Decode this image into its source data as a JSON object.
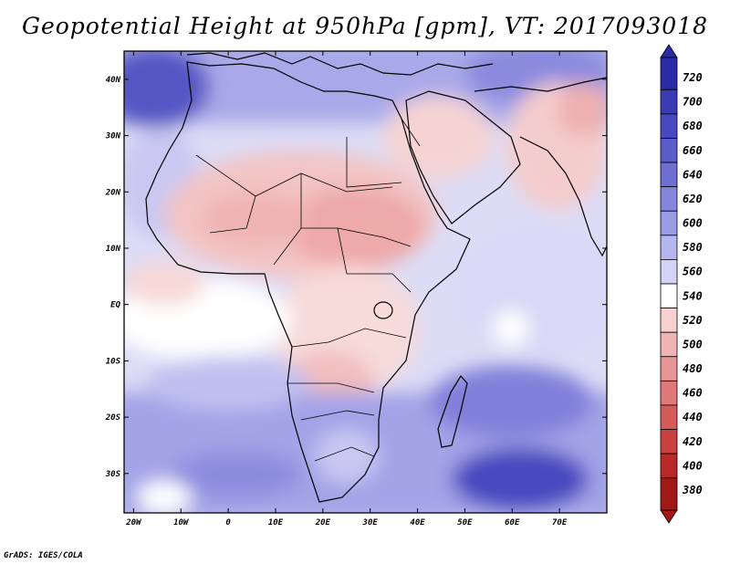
{
  "title": "Geopotential Height at 950hPa [gpm], VT: 2017093018",
  "credit": "GrADS: IGES/COLA",
  "map": {
    "lat_labels": [
      "40N",
      "30N",
      "20N",
      "10N",
      "EQ",
      "10S",
      "20S",
      "30S"
    ],
    "lon_labels": [
      "20W",
      "10W",
      "0",
      "10E",
      "20E",
      "30E",
      "40E",
      "50E",
      "60E",
      "70E"
    ],
    "lat_values": [
      40,
      30,
      20,
      10,
      0,
      -10,
      -20,
      -30
    ],
    "lon_values": [
      -20,
      -10,
      0,
      10,
      20,
      30,
      40,
      50,
      60,
      70
    ],
    "extent": {
      "lon_min": -22,
      "lon_max": 80,
      "lat_min": -37,
      "lat_max": 45
    }
  },
  "colorbar": {
    "levels": [
      "720",
      "700",
      "680",
      "660",
      "640",
      "620",
      "600",
      "580",
      "560",
      "540",
      "520",
      "500",
      "480",
      "460",
      "440",
      "420",
      "400",
      "380"
    ],
    "colors": [
      "#2b2ba8",
      "#3b3bb4",
      "#4949bf",
      "#5c5cc9",
      "#6f6fd3",
      "#8585dd",
      "#9c9ce6",
      "#b6b6ee",
      "#d3d3f5",
      "#ffffff",
      "#f7d1d1",
      "#f0b4b4",
      "#e89595",
      "#df7878",
      "#d55b5b",
      "#c94141",
      "#b82a2a",
      "#a01818"
    ]
  }
}
